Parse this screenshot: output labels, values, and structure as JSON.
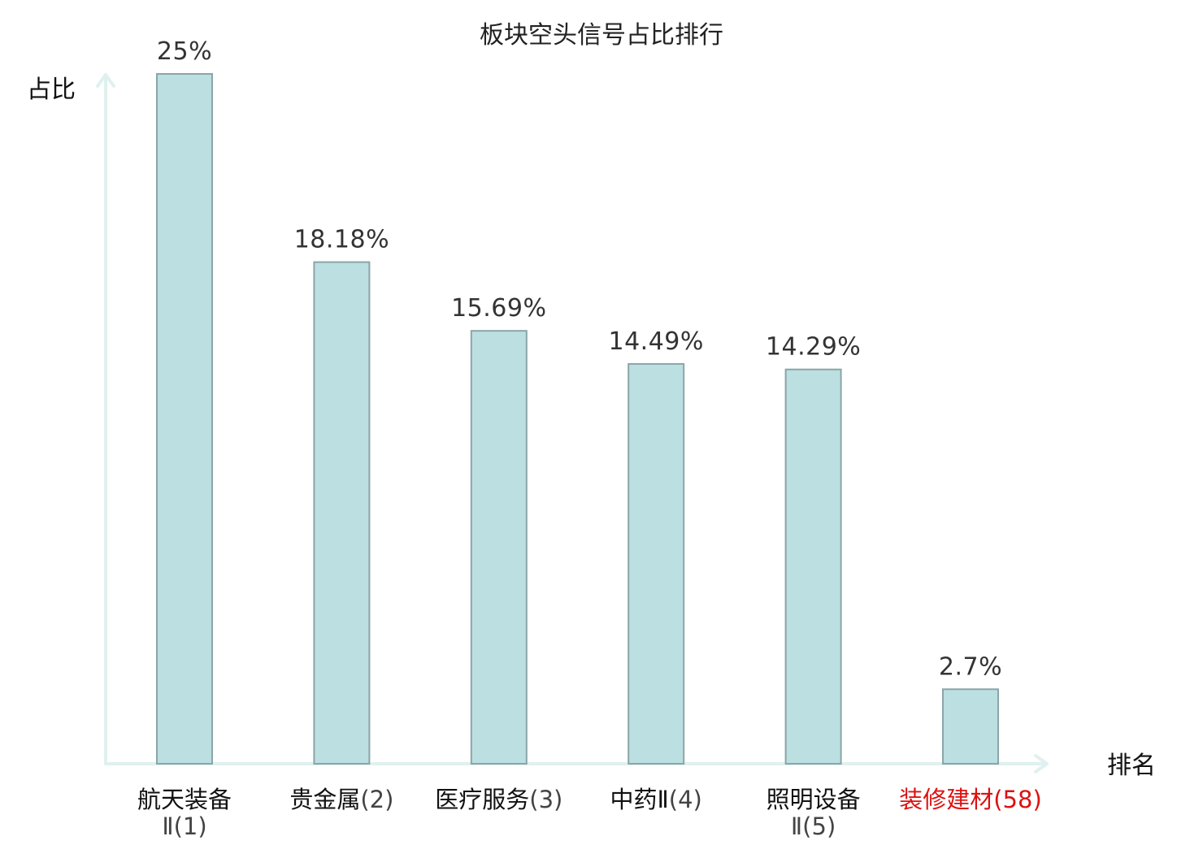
{
  "chart_data": {
    "type": "bar",
    "title": "板块空头信号占比排行",
    "ylabel": "占比",
    "xlabel": "排名",
    "ylim": [
      0,
      25
    ],
    "grid": false,
    "categories": [
      {
        "name": "航天装备Ⅱ",
        "rank": "(1)",
        "value": 25,
        "label": "25%",
        "highlight": false
      },
      {
        "name": "贵金属",
        "rank": "(2)",
        "value": 18.18,
        "label": "18.18%",
        "highlight": false
      },
      {
        "name": "医疗服务",
        "rank": "(3)",
        "value": 15.69,
        "label": "15.69%",
        "highlight": false
      },
      {
        "name": "中药Ⅱ",
        "rank": "(4)",
        "value": 14.49,
        "label": "14.49%",
        "highlight": false
      },
      {
        "name": "照明设备Ⅱ",
        "rank": "(5)",
        "value": 14.29,
        "label": "14.29%",
        "highlight": false
      },
      {
        "name": "装修建材",
        "rank": "(58)",
        "value": 2.7,
        "label": "2.7%",
        "highlight": true
      }
    ],
    "colors": {
      "bar_fill": "#bce0e2",
      "bar_stroke": "#8aa5a8",
      "axis": "#dff1ef",
      "highlight_text": "#dd1111"
    }
  }
}
